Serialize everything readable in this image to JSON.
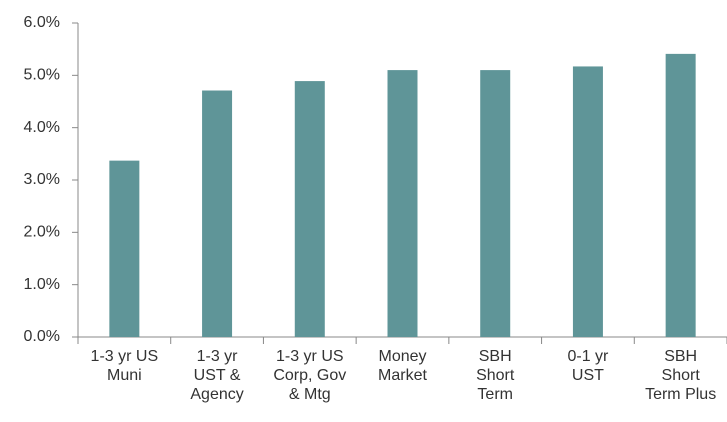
{
  "chart_data": {
    "type": "bar",
    "categories": [
      "1-3 yr US\nMuni",
      "1-3 yr\nUST &\nAgency",
      "1-3 yr US\nCorp, Gov\n& Mtg",
      "Money\nMarket",
      "SBH\nShort\nTerm",
      "0-1 yr\nUST",
      "SBH\nShort\nTerm Plus"
    ],
    "values": [
      3.37,
      4.71,
      4.89,
      5.1,
      5.1,
      5.17,
      5.41
    ],
    "color": "#5f9598",
    "ylim": [
      0,
      6
    ],
    "yticks": [
      {
        "value": 0,
        "label": "0.0%"
      },
      {
        "value": 1,
        "label": "1.0%"
      },
      {
        "value": 2,
        "label": "2.0%"
      },
      {
        "value": 3,
        "label": "3.0%"
      },
      {
        "value": 4,
        "label": "4.0%"
      },
      {
        "value": 5,
        "label": "5.0%"
      },
      {
        "value": 6,
        "label": "6.0%"
      }
    ],
    "grid": false
  }
}
